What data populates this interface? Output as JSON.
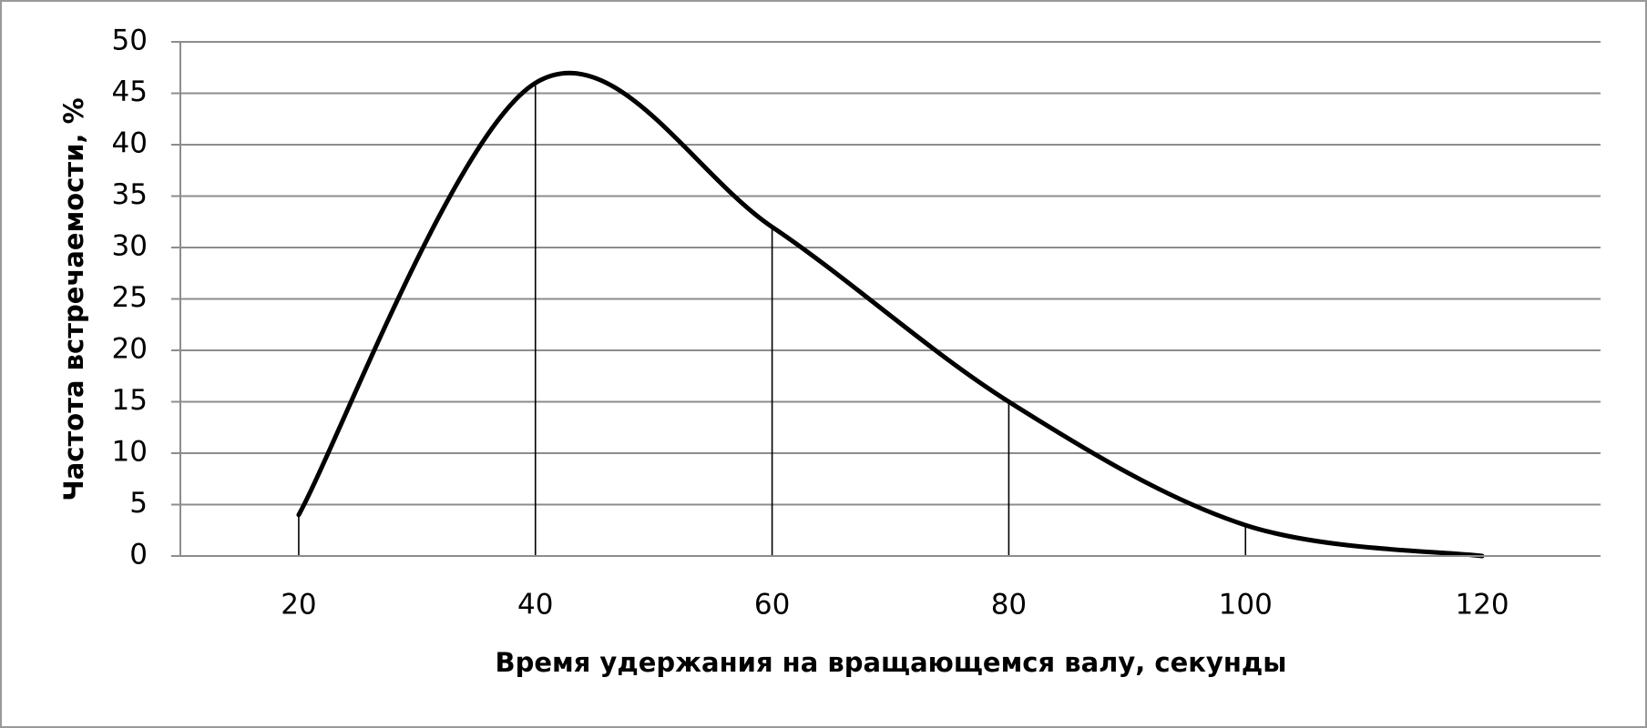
{
  "chart_data": {
    "type": "line",
    "x_label": "Время удержания на вращающемся валу, секунды",
    "y_label": "Частота встречаемости, %",
    "x": [
      20,
      40,
      60,
      80,
      100,
      120
    ],
    "values": [
      4,
      46,
      32,
      15,
      3,
      0
    ],
    "color": "#000000",
    "xlim": [
      10,
      130
    ],
    "xticks": [
      20,
      40,
      60,
      80,
      100,
      120
    ],
    "ylim": [
      0,
      50
    ],
    "yticks": [
      0,
      5,
      10,
      15,
      20,
      25,
      30,
      35,
      40,
      45,
      50
    ],
    "grid": true,
    "drop_lines": true,
    "smooth": true
  }
}
